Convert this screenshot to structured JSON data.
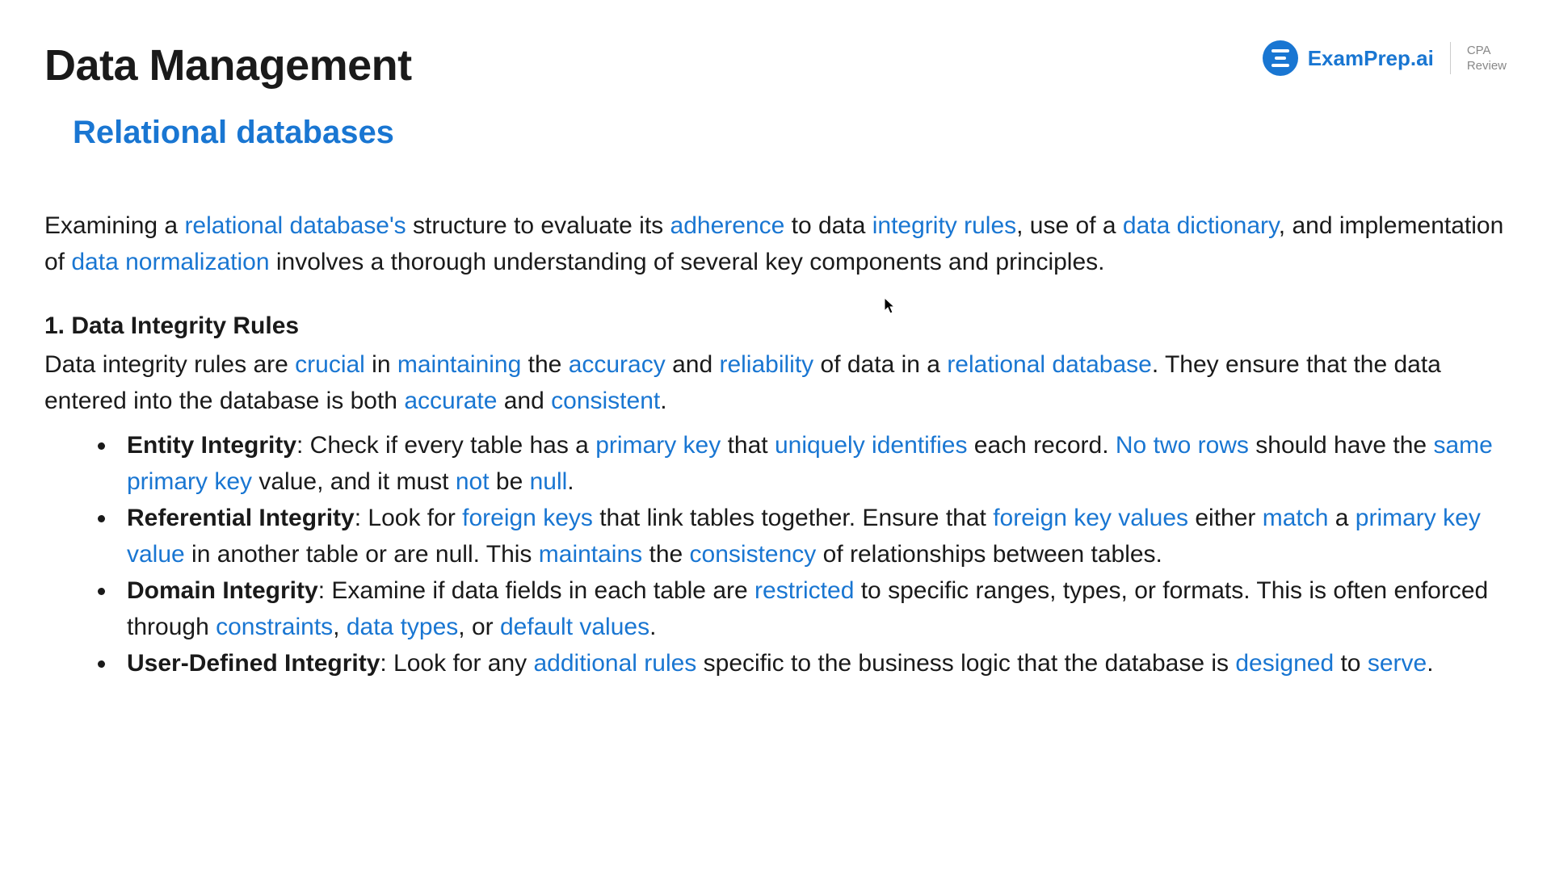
{
  "colors": {
    "highlight": "#1976d2",
    "text": "#1a1a1a",
    "background": "#ffffff",
    "logo_bg": "#1976d2",
    "logo_sub": "#888888",
    "divider": "#cccccc"
  },
  "typography": {
    "title_fontsize": 54,
    "subtitle_fontsize": 40,
    "body_fontsize": 30,
    "font_family": "Arial"
  },
  "header": {
    "title": "Data Management",
    "subtitle": "Relational databases",
    "logo": {
      "brand": "ExamPrep.ai",
      "sub_line1": "CPA",
      "sub_line2": "Review"
    }
  },
  "intro": {
    "segments": [
      {
        "t": "Examining a ",
        "hl": false
      },
      {
        "t": "relational database's",
        "hl": true
      },
      {
        "t": " structure to evaluate its ",
        "hl": false
      },
      {
        "t": "adherence",
        "hl": true
      },
      {
        "t": " to data ",
        "hl": false
      },
      {
        "t": "integrity rules",
        "hl": true
      },
      {
        "t": ", use of a ",
        "hl": false
      },
      {
        "t": "data dictionary",
        "hl": true
      },
      {
        "t": ", and implementation of ",
        "hl": false
      },
      {
        "t": "data normalization",
        "hl": true
      },
      {
        "t": " involves a thorough understanding of several key components and principles.",
        "hl": false
      }
    ]
  },
  "section": {
    "heading": "1. Data Integrity Rules",
    "body_segments": [
      {
        "t": "Data integrity rules are ",
        "hl": false
      },
      {
        "t": "crucial",
        "hl": true
      },
      {
        "t": " in ",
        "hl": false
      },
      {
        "t": "maintaining",
        "hl": true
      },
      {
        "t": " the ",
        "hl": false
      },
      {
        "t": "accuracy",
        "hl": true
      },
      {
        "t": " and ",
        "hl": false
      },
      {
        "t": "reliability",
        "hl": true
      },
      {
        "t": " of data in a ",
        "hl": false
      },
      {
        "t": "relational database",
        "hl": true
      },
      {
        "t": ". They ensure that the data entered into the database is both ",
        "hl": false
      },
      {
        "t": "accurate",
        "hl": true
      },
      {
        "t": " and ",
        "hl": false
      },
      {
        "t": "consistent",
        "hl": true
      },
      {
        "t": ".",
        "hl": false
      }
    ],
    "bullets": [
      {
        "segments": [
          {
            "t": "Entity Integrity",
            "hl": false,
            "bold": true
          },
          {
            "t": ": Check if every table has a ",
            "hl": false
          },
          {
            "t": "primary key",
            "hl": true
          },
          {
            "t": " that ",
            "hl": false
          },
          {
            "t": "uniquely identifies",
            "hl": true
          },
          {
            "t": " each record. ",
            "hl": false
          },
          {
            "t": "No two rows",
            "hl": true
          },
          {
            "t": " should have the ",
            "hl": false
          },
          {
            "t": "same primary key",
            "hl": true
          },
          {
            "t": " value, and it must ",
            "hl": false
          },
          {
            "t": "not",
            "hl": true
          },
          {
            "t": " be ",
            "hl": false
          },
          {
            "t": "null",
            "hl": true
          },
          {
            "t": ".",
            "hl": false
          }
        ]
      },
      {
        "segments": [
          {
            "t": "Referential Integrity",
            "hl": false,
            "bold": true
          },
          {
            "t": ": Look for ",
            "hl": false
          },
          {
            "t": "foreign keys",
            "hl": true
          },
          {
            "t": " that link tables together. Ensure that ",
            "hl": false
          },
          {
            "t": "foreign key values",
            "hl": true
          },
          {
            "t": " either ",
            "hl": false
          },
          {
            "t": "match",
            "hl": true
          },
          {
            "t": " a ",
            "hl": false
          },
          {
            "t": "primary key value",
            "hl": true
          },
          {
            "t": " in another table or are null. This ",
            "hl": false
          },
          {
            "t": "maintains",
            "hl": true
          },
          {
            "t": " the ",
            "hl": false
          },
          {
            "t": "consistency",
            "hl": true
          },
          {
            "t": " of relationships between tables.",
            "hl": false
          }
        ]
      },
      {
        "segments": [
          {
            "t": "Domain Integrity",
            "hl": false,
            "bold": true
          },
          {
            "t": ": Examine if data fields in each table are ",
            "hl": false
          },
          {
            "t": "restricted",
            "hl": true
          },
          {
            "t": " to specific ranges, types, or formats. This is often enforced through ",
            "hl": false
          },
          {
            "t": "constraints",
            "hl": true
          },
          {
            "t": ", ",
            "hl": false
          },
          {
            "t": "data types",
            "hl": true
          },
          {
            "t": ", or ",
            "hl": false
          },
          {
            "t": "default values",
            "hl": true
          },
          {
            "t": ".",
            "hl": false
          }
        ]
      },
      {
        "segments": [
          {
            "t": "User-Defined Integrity",
            "hl": false,
            "bold": true
          },
          {
            "t": ": Look for any ",
            "hl": false
          },
          {
            "t": "additional rules",
            "hl": true
          },
          {
            "t": " specific to the business logic that the database is ",
            "hl": false
          },
          {
            "t": "designed",
            "hl": true
          },
          {
            "t": " to ",
            "hl": false
          },
          {
            "t": "serve",
            "hl": true
          },
          {
            "t": ".",
            "hl": false
          }
        ]
      }
    ]
  }
}
